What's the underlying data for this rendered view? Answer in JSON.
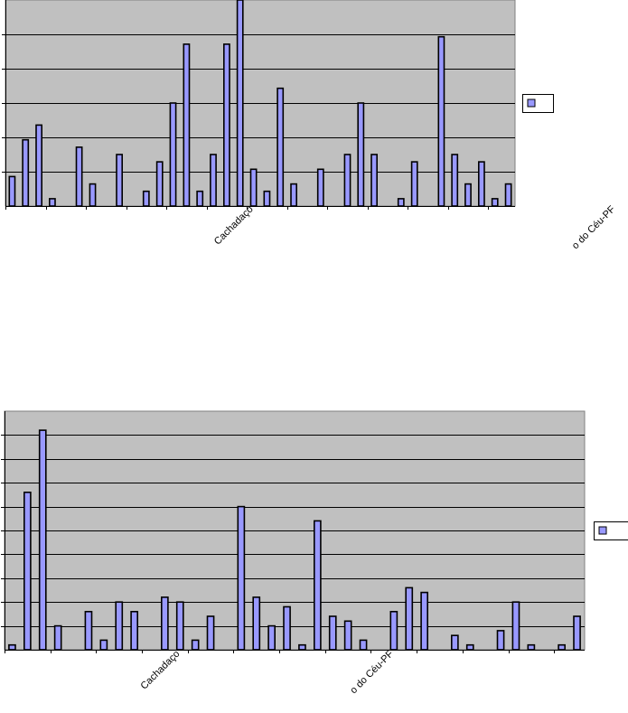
{
  "colors": {
    "plot_area": "#c0c0c0",
    "bar_fill": "#9999ff",
    "bar_stroke": "#000000",
    "grid": "#000000",
    "background": "#ffffff"
  },
  "chart_data": [
    {
      "type": "bar",
      "title": "",
      "xlabel": "",
      "ylabel": "",
      "ylim": [
        0,
        28
      ],
      "grid": true,
      "legend": "right",
      "category_labels": [
        {
          "index": 18,
          "text": "Cachadaço"
        },
        {
          "index": 45,
          "text": "o do Céu-PF"
        }
      ],
      "series": [
        {
          "values": [
            4,
            9,
            11,
            1,
            0,
            8,
            3,
            0,
            7,
            0,
            2,
            6,
            14,
            22,
            2,
            7,
            22,
            28,
            5,
            2,
            16,
            3,
            0,
            5,
            0,
            7,
            14,
            7,
            0,
            1,
            6,
            0,
            23,
            7,
            3,
            6,
            1,
            3
          ]
        }
      ]
    },
    {
      "type": "bar",
      "title": "",
      "xlabel": "",
      "ylabel": "",
      "ylim": [
        0,
        50
      ],
      "grid": true,
      "legend": "right",
      "category_labels": [
        {
          "index": 11,
          "text": "Cachadaço"
        },
        {
          "index": 25,
          "text": "o do Céu-PF"
        }
      ],
      "series": [
        {
          "values": [
            1,
            33,
            46,
            5,
            0,
            8,
            2,
            10,
            8,
            0,
            11,
            10,
            2,
            7,
            0,
            30,
            11,
            5,
            9,
            1,
            27,
            7,
            6,
            2,
            0,
            8,
            13,
            12,
            0,
            3,
            1,
            0,
            4,
            10,
            1,
            0,
            1,
            7
          ]
        }
      ]
    }
  ]
}
